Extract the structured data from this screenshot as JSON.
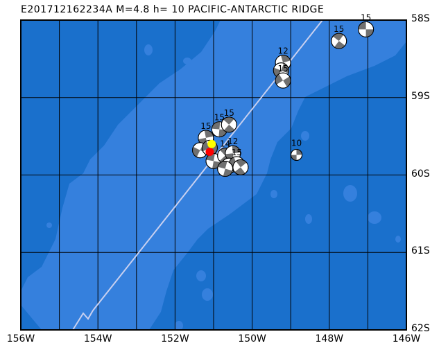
{
  "title": "E201712162234A M=4.8 h= 10 PACIFIC-ANTARCTIC RIDGE",
  "map": {
    "lon_range": [
      -156,
      -146
    ],
    "lat_range": [
      -62,
      -58
    ],
    "x_tick_labels": [
      "156W",
      "154W",
      "152W",
      "150W",
      "148W",
      "146W"
    ],
    "y_tick_labels": [
      "58S",
      "59S",
      "60S",
      "61S",
      "62S"
    ],
    "colors": {
      "deep": "#1a70cc",
      "shallow": "#3580dd",
      "ridge": "#c8d0f0",
      "quadrant": "#707070",
      "target": "#ffff00",
      "highlight": "#ff0000"
    }
  },
  "events": [
    {
      "lon": -147.05,
      "lat": -58.12,
      "depth": "15"
    },
    {
      "lon": -147.75,
      "lat": -58.27,
      "depth": "15"
    },
    {
      "lon": -149.2,
      "lat": -58.55,
      "depth": "12"
    },
    {
      "lon": -149.25,
      "lat": -58.65,
      "depth": ""
    },
    {
      "lon": -149.2,
      "lat": -58.78,
      "depth": "15"
    },
    {
      "lon": -150.85,
      "lat": -59.41,
      "depth": "15"
    },
    {
      "lon": -150.6,
      "lat": -59.35,
      "depth": "15"
    },
    {
      "lon": -151.2,
      "lat": -59.52,
      "depth": "15"
    },
    {
      "lon": -151.35,
      "lat": -59.68,
      "depth": ""
    },
    {
      "lon": -151.1,
      "lat": -59.65,
      "depth": ""
    },
    {
      "lon": -151.0,
      "lat": -59.82,
      "depth": ""
    },
    {
      "lon": -150.7,
      "lat": -59.75,
      "depth": "14"
    },
    {
      "lon": -150.5,
      "lat": -59.72,
      "depth": "12"
    },
    {
      "lon": -150.6,
      "lat": -59.88,
      "depth": ""
    },
    {
      "lon": -150.4,
      "lat": -59.86,
      "depth": "15"
    },
    {
      "lon": -150.7,
      "lat": -59.92,
      "depth": ""
    },
    {
      "lon": -150.3,
      "lat": -59.9,
      "depth": ""
    },
    {
      "lon": -148.85,
      "lat": -59.74,
      "depth": "10"
    }
  ],
  "target_event": {
    "lon": -151.05,
    "lat": -59.6
  },
  "highlight_event": {
    "lon": -151.1,
    "lat": -59.7
  }
}
